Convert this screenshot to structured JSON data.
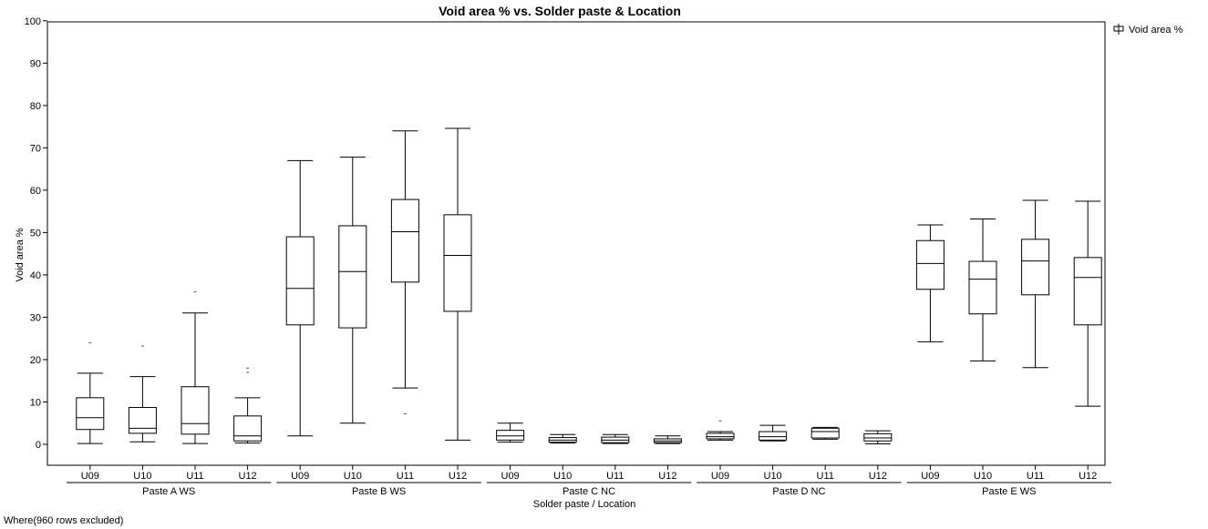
{
  "chart_data": {
    "type": "box",
    "title": "Void area % vs. Solder paste & Location",
    "ylabel": "Void area %",
    "xlabel": "Solder paste / Location",
    "ylim": [
      -5,
      100
    ],
    "yticks": [
      0,
      10,
      20,
      30,
      40,
      50,
      60,
      70,
      80,
      90,
      100
    ],
    "legend": {
      "placement": "top-right",
      "entries": [
        "Void area %"
      ]
    },
    "grid": false,
    "groups": [
      {
        "name": "Paste A WS",
        "boxes": [
          {
            "label": "U09",
            "min": 0.2,
            "q1": 3.5,
            "median": 6.3,
            "q3": 11.0,
            "max": 16.8,
            "outliers": [
              24.0
            ]
          },
          {
            "label": "U10",
            "min": 0.6,
            "q1": 2.6,
            "median": 3.8,
            "q3": 8.7,
            "max": 16.0,
            "outliers": [
              23.2
            ]
          },
          {
            "label": "U11",
            "min": 0.2,
            "q1": 2.4,
            "median": 4.9,
            "q3": 13.6,
            "max": 31.0,
            "outliers": [
              36.0
            ]
          },
          {
            "label": "U12",
            "min": 0.3,
            "q1": 0.8,
            "median": 2.0,
            "q3": 6.7,
            "max": 11.0,
            "outliers": [
              17.0,
              18.0
            ]
          }
        ]
      },
      {
        "name": "Paste B WS",
        "boxes": [
          {
            "label": "U09",
            "min": 2.0,
            "q1": 28.2,
            "median": 36.8,
            "q3": 49.0,
            "max": 67.0,
            "outliers": []
          },
          {
            "label": "U10",
            "min": 5.0,
            "q1": 27.5,
            "median": 40.8,
            "q3": 51.6,
            "max": 67.8,
            "outliers": []
          },
          {
            "label": "U11",
            "min": 13.3,
            "q1": 38.3,
            "median": 50.2,
            "q3": 57.8,
            "max": 74.0,
            "outliers": [
              7.2
            ]
          },
          {
            "label": "U12",
            "min": 1.0,
            "q1": 31.4,
            "median": 44.6,
            "q3": 54.2,
            "max": 74.6,
            "outliers": []
          }
        ]
      },
      {
        "name": "Paste C NC",
        "boxes": [
          {
            "label": "U09",
            "min": 0.5,
            "q1": 1.0,
            "median": 2.0,
            "q3": 3.3,
            "max": 5.0,
            "outliers": []
          },
          {
            "label": "U10",
            "min": 0.3,
            "q1": 0.5,
            "median": 1.0,
            "q3": 1.6,
            "max": 2.3,
            "outliers": []
          },
          {
            "label": "U11",
            "min": 0.2,
            "q1": 0.4,
            "median": 1.0,
            "q3": 1.7,
            "max": 2.3,
            "outliers": []
          },
          {
            "label": "U12",
            "min": 0.2,
            "q1": 0.4,
            "median": 0.8,
            "q3": 1.3,
            "max": 2.0,
            "outliers": []
          }
        ]
      },
      {
        "name": "Paste D NC",
        "boxes": [
          {
            "label": "U09",
            "min": 1.0,
            "q1": 1.3,
            "median": 1.8,
            "q3": 2.6,
            "max": 3.0,
            "outliers": [
              5.5
            ]
          },
          {
            "label": "U10",
            "min": 0.8,
            "q1": 1.0,
            "median": 1.8,
            "q3": 3.0,
            "max": 4.5,
            "outliers": []
          },
          {
            "label": "U11",
            "min": 1.2,
            "q1": 1.5,
            "median": 3.0,
            "q3": 3.8,
            "max": 4.0,
            "outliers": []
          },
          {
            "label": "U12",
            "min": 0.1,
            "q1": 0.8,
            "median": 1.5,
            "q3": 2.5,
            "max": 3.2,
            "outliers": []
          }
        ]
      },
      {
        "name": "Paste E WS",
        "boxes": [
          {
            "label": "U09",
            "min": 24.2,
            "q1": 36.6,
            "median": 42.7,
            "q3": 48.1,
            "max": 51.8,
            "outliers": []
          },
          {
            "label": "U10",
            "min": 19.7,
            "q1": 30.8,
            "median": 39.0,
            "q3": 43.2,
            "max": 53.2,
            "outliers": []
          },
          {
            "label": "U11",
            "min": 18.1,
            "q1": 35.3,
            "median": 43.3,
            "q3": 48.4,
            "max": 57.6,
            "outliers": []
          },
          {
            "label": "U12",
            "min": 9.0,
            "q1": 28.2,
            "median": 39.4,
            "q3": 44.1,
            "max": 57.4,
            "outliers": []
          }
        ]
      }
    ]
  },
  "footnote": "Where(960 rows excluded)"
}
